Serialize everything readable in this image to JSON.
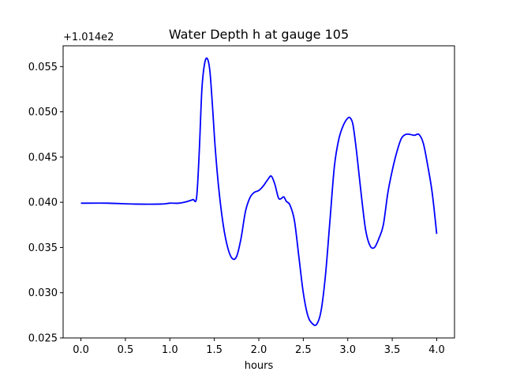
{
  "chart_data": {
    "type": "line",
    "title": "Water Depth h at gauge 105",
    "xlabel": "hours",
    "ylabel": "",
    "y_offset_text": "+1.014e2",
    "xlim": [
      -0.2,
      4.2
    ],
    "ylim": [
      0.025,
      0.0573
    ],
    "xticks": [
      0.0,
      0.5,
      1.0,
      1.5,
      2.0,
      2.5,
      3.0,
      3.5,
      4.0
    ],
    "xtick_labels": [
      "0.0",
      "0.5",
      "1.0",
      "1.5",
      "2.0",
      "2.5",
      "3.0",
      "3.5",
      "4.0"
    ],
    "yticks": [
      0.025,
      0.03,
      0.035,
      0.04,
      0.045,
      0.05,
      0.055
    ],
    "ytick_labels": [
      "0.025",
      "0.030",
      "0.035",
      "0.040",
      "0.045",
      "0.050",
      "0.055"
    ],
    "grid": false,
    "series": [
      {
        "color": "#0000ff",
        "x": [
          0.0,
          0.3,
          0.6,
          0.9,
          1.0,
          1.1,
          1.2,
          1.26,
          1.3,
          1.33,
          1.36,
          1.39,
          1.42,
          1.45,
          1.48,
          1.51,
          1.55,
          1.6,
          1.65,
          1.7,
          1.75,
          1.8,
          1.85,
          1.9,
          1.95,
          2.0,
          2.05,
          2.1,
          2.14,
          2.18,
          2.22,
          2.25,
          2.28,
          2.31,
          2.35,
          2.4,
          2.45,
          2.5,
          2.55,
          2.6,
          2.65,
          2.7,
          2.75,
          2.8,
          2.85,
          2.9,
          2.95,
          3.0,
          3.03,
          3.06,
          3.1,
          3.15,
          3.2,
          3.25,
          3.3,
          3.35,
          3.4,
          3.45,
          3.5,
          3.55,
          3.6,
          3.65,
          3.7,
          3.75,
          3.8,
          3.85,
          3.9,
          3.95,
          4.0
        ],
        "values": [
          0.0399,
          0.0399,
          0.0398,
          0.0398,
          0.0399,
          0.0399,
          0.0401,
          0.0403,
          0.0405,
          0.0455,
          0.0525,
          0.0553,
          0.0559,
          0.0545,
          0.0505,
          0.046,
          0.0415,
          0.0375,
          0.035,
          0.0338,
          0.034,
          0.036,
          0.039,
          0.0405,
          0.0411,
          0.0413,
          0.0418,
          0.0425,
          0.0429,
          0.042,
          0.0405,
          0.0404,
          0.0406,
          0.0401,
          0.0397,
          0.038,
          0.034,
          0.03,
          0.0275,
          0.0266,
          0.0265,
          0.028,
          0.032,
          0.038,
          0.044,
          0.047,
          0.0485,
          0.0493,
          0.0493,
          0.0485,
          0.0455,
          0.041,
          0.037,
          0.0352,
          0.035,
          0.036,
          0.0375,
          0.041,
          0.0435,
          0.0455,
          0.047,
          0.0475,
          0.0475,
          0.0474,
          0.0475,
          0.0465,
          0.044,
          0.041,
          0.0365
        ]
      }
    ]
  }
}
